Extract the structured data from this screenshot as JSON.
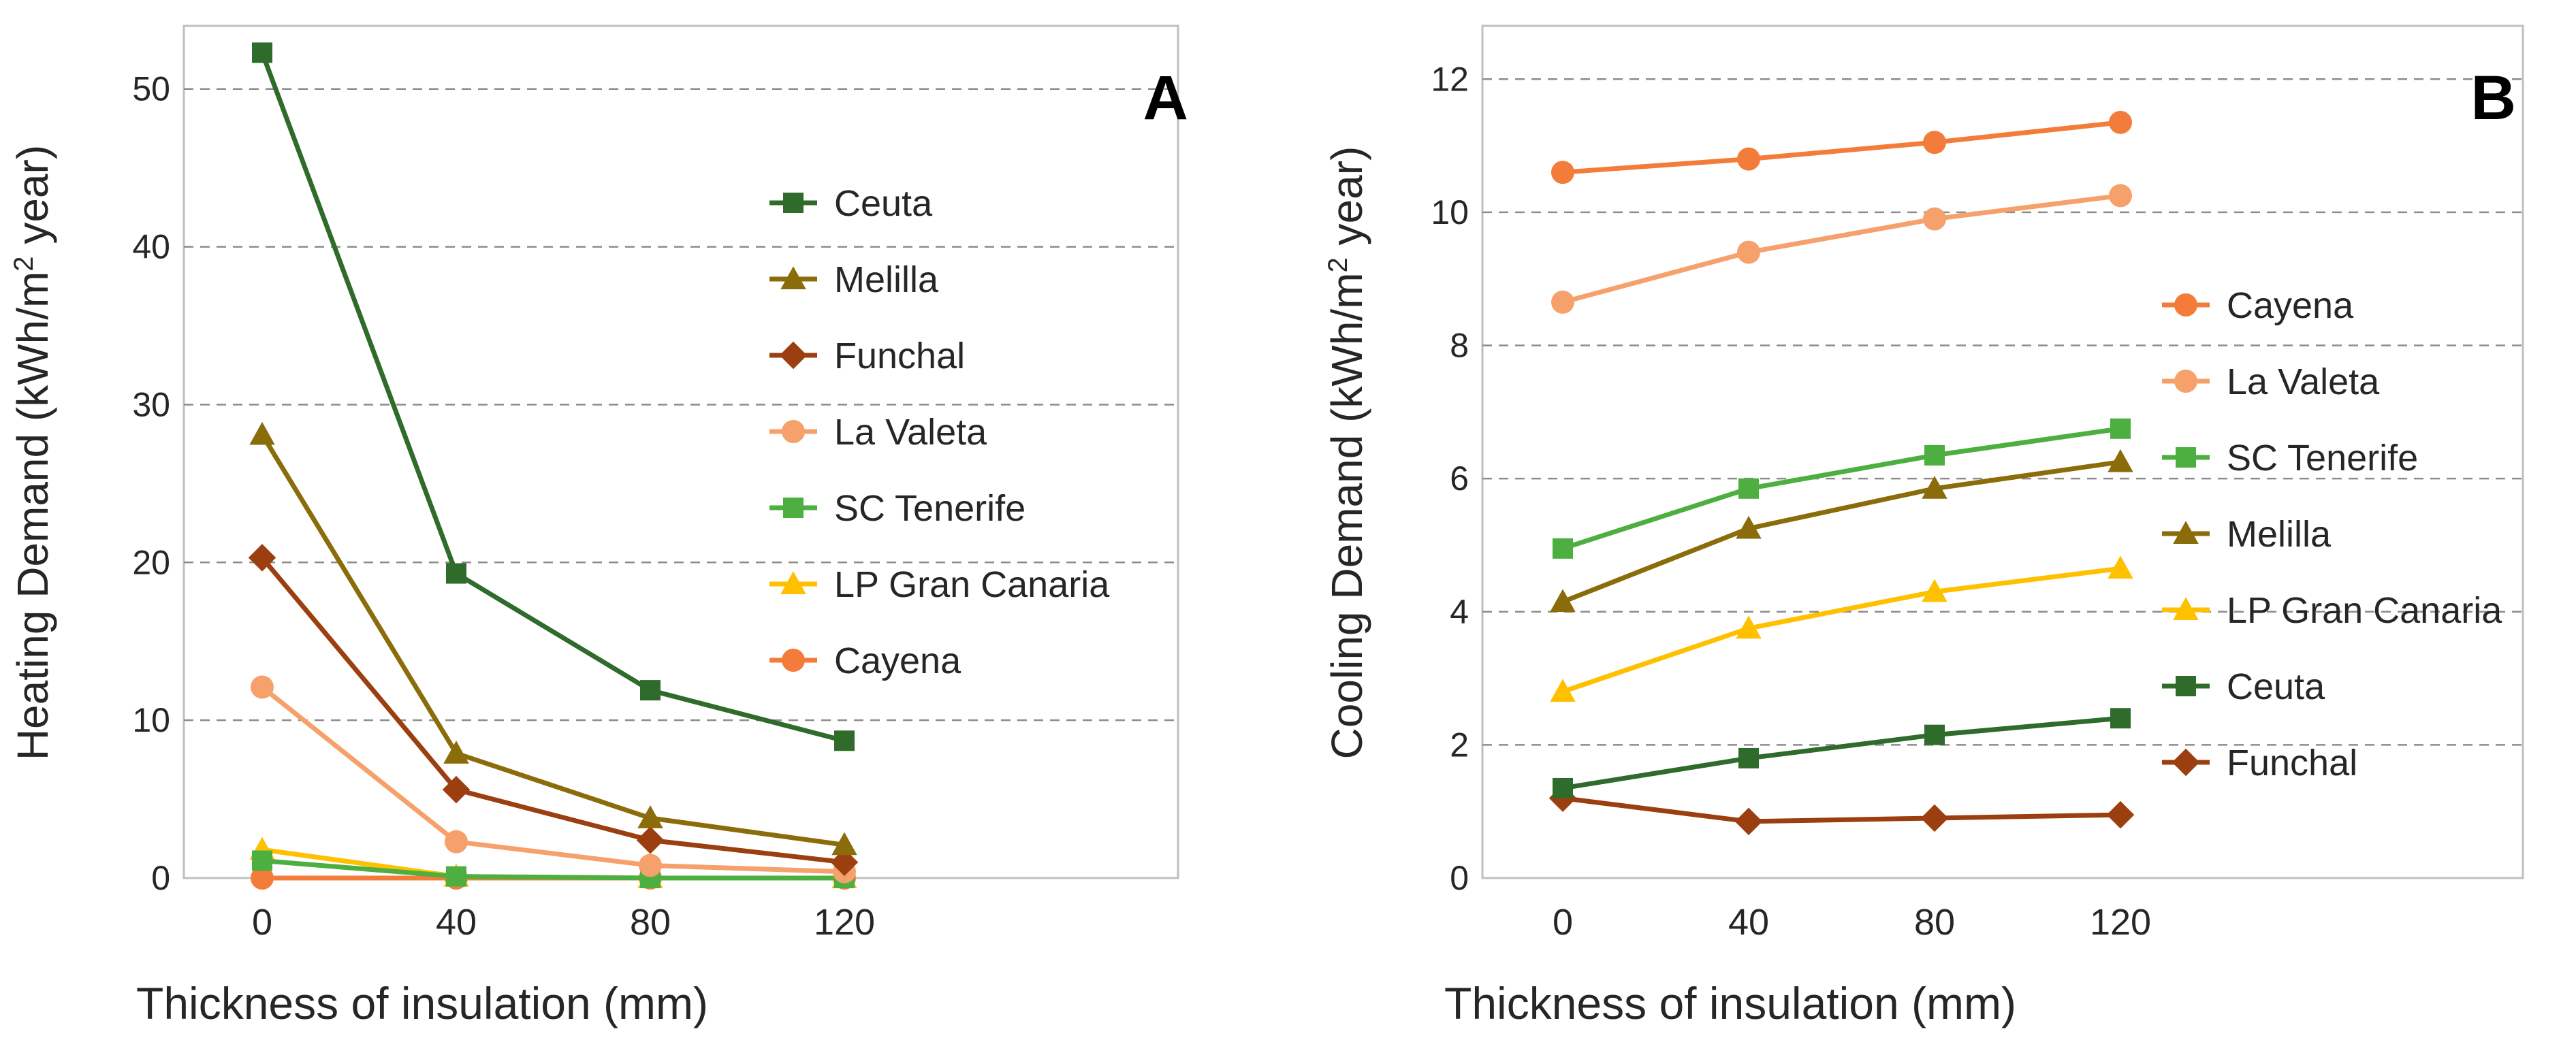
{
  "chart_data": [
    {
      "type": "line",
      "panel": "A",
      "title": "",
      "panel_label": "A",
      "xlabel": "Thickness of insulation (mm)",
      "ylabel_parts": [
        "Heating Demand (kWh/m",
        "2",
        " year)"
      ],
      "categories": [
        "0",
        "40",
        "80",
        "120"
      ],
      "ylim": [
        0,
        54
      ],
      "yticks": [
        0,
        10,
        20,
        30,
        40,
        50
      ],
      "grid": "horizontal dashed",
      "legend": "upper-right, inside",
      "series": [
        {
          "name": "Ceuta",
          "marker": "square",
          "color": "#2f6b2b",
          "values": [
            52.3,
            19.3,
            11.9,
            8.7
          ]
        },
        {
          "name": "Melilla",
          "marker": "triangle",
          "color": "#8a6d0a",
          "values": [
            28.1,
            7.9,
            3.8,
            2.1
          ]
        },
        {
          "name": "Funchal",
          "marker": "diamond",
          "color": "#9b3f10",
          "values": [
            20.3,
            5.6,
            2.4,
            1.0
          ]
        },
        {
          "name": "La Valeta",
          "marker": "circle",
          "color": "#f6a06b",
          "values": [
            12.1,
            2.3,
            0.8,
            0.4
          ]
        },
        {
          "name": "SC Tenerife",
          "marker": "square",
          "color": "#4caf3f",
          "values": [
            1.1,
            0.1,
            0.0,
            0.0
          ]
        },
        {
          "name": "LP Gran Canaria",
          "marker": "triangle",
          "color": "#ffc000",
          "values": [
            1.8,
            0.1,
            0.0,
            0.0
          ]
        },
        {
          "name": "Cayena",
          "marker": "circle",
          "color": "#f37c3b",
          "values": [
            0.0,
            0.0,
            0.0,
            0.0
          ]
        }
      ]
    },
    {
      "type": "line",
      "panel": "B",
      "title": "",
      "panel_label": "B",
      "xlabel": "Thickness of insulation (mm)",
      "ylabel_parts": [
        "Cooling Demand (kWh/m",
        "2",
        " year)"
      ],
      "categories": [
        "0",
        "40",
        "80",
        "120"
      ],
      "ylim": [
        0,
        12.8
      ],
      "yticks": [
        0,
        2,
        4,
        6,
        8,
        10,
        12
      ],
      "grid": "horizontal dashed",
      "legend": "right, inside",
      "series": [
        {
          "name": "Cayena",
          "marker": "circle",
          "color": "#f37c3b",
          "values": [
            10.6,
            10.8,
            11.05,
            11.35
          ]
        },
        {
          "name": "La Valeta",
          "marker": "circle",
          "color": "#f6a06b",
          "values": [
            8.65,
            9.4,
            9.9,
            10.25
          ]
        },
        {
          "name": "SC Tenerife",
          "marker": "square",
          "color": "#4caf3f",
          "values": [
            4.95,
            5.85,
            6.35,
            6.75
          ]
        },
        {
          "name": "Melilla",
          "marker": "triangle",
          "color": "#8a6d0a",
          "values": [
            4.15,
            5.25,
            5.85,
            6.25
          ]
        },
        {
          "name": "LP Gran Canaria",
          "marker": "triangle",
          "color": "#ffc000",
          "values": [
            2.8,
            3.75,
            4.3,
            4.65
          ]
        },
        {
          "name": "Ceuta",
          "marker": "square",
          "color": "#2f6b2b",
          "values": [
            1.35,
            1.8,
            2.15,
            2.4
          ]
        },
        {
          "name": "Funchal",
          "marker": "diamond",
          "color": "#9b3f10",
          "values": [
            1.2,
            0.85,
            0.9,
            0.95
          ]
        }
      ]
    }
  ]
}
